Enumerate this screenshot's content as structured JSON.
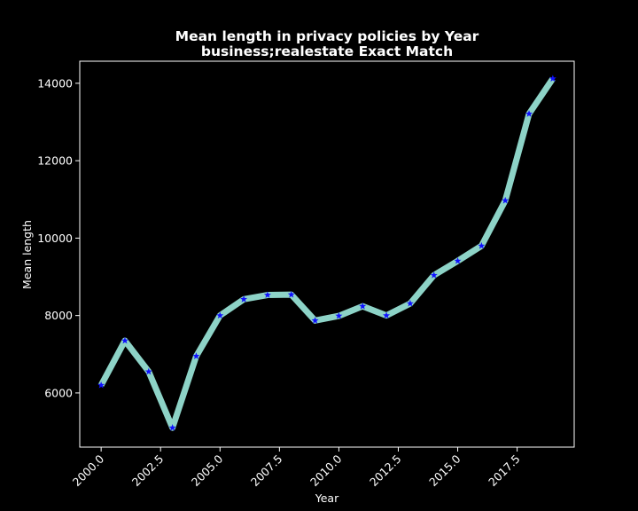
{
  "chart_data": {
    "type": "line",
    "title_line1": "Mean length in privacy policies by Year",
    "title_line2": "business;realestate Exact Match",
    "xlabel": "Year",
    "ylabel": "Mean length",
    "x": [
      2000,
      2001,
      2002,
      2003,
      2004,
      2005,
      2006,
      2007,
      2008,
      2009,
      2010,
      2011,
      2012,
      2013,
      2014,
      2015,
      2016,
      2017,
      2018,
      2019
    ],
    "series": [
      {
        "values": [
          6200,
          7350,
          6550,
          5100,
          6950,
          8000,
          8420,
          8530,
          8540,
          7870,
          7990,
          8240,
          8000,
          8310,
          9040,
          9410,
          9800,
          10970,
          13210,
          14120
        ]
      }
    ],
    "xlim": [
      1999.1,
      2019.9
    ],
    "ylim": [
      4600,
      14570
    ],
    "x_ticks": [
      2000.0,
      2002.5,
      2005.0,
      2007.5,
      2010.0,
      2012.5,
      2015.0,
      2017.5
    ],
    "x_tick_labels": [
      "2000.0",
      "2002.5",
      "2005.0",
      "2007.5",
      "2010.0",
      "2012.5",
      "2015.0",
      "2017.5"
    ],
    "y_ticks": [
      6000,
      8000,
      10000,
      12000,
      14000
    ],
    "y_tick_labels": [
      "6000",
      "8000",
      "10000",
      "12000",
      "14000"
    ],
    "grid": false,
    "colors": {
      "background": "#000000",
      "axes": "#ffffff",
      "line": "#8dd3c7",
      "marker": "#1010ff"
    }
  }
}
